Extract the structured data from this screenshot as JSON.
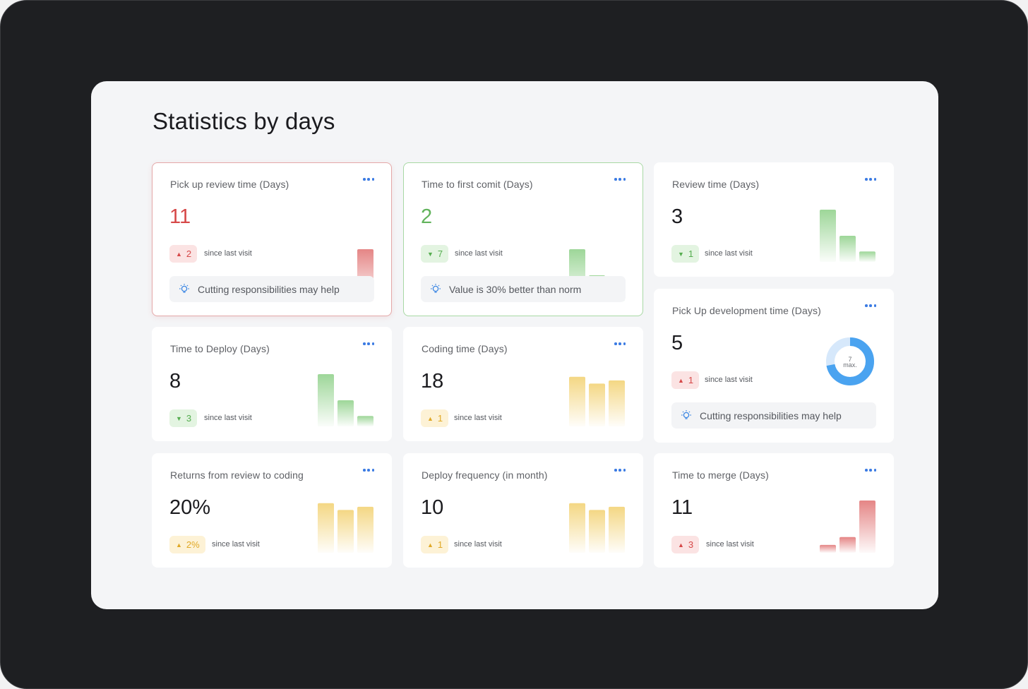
{
  "page": {
    "title": "Statistics by days"
  },
  "colors": {
    "red": "#e07070",
    "green": "#8ccf86",
    "yellow": "#f2d06e",
    "blue_accent": "#3b7be3",
    "donut": "#4aa3f0"
  },
  "icons": {
    "menu": "more-dots-icon",
    "tip": "lightbulb-icon",
    "up": "triangle-up-icon",
    "down": "triangle-down-icon"
  },
  "cards": [
    {
      "title": "Pick up review time (Days)",
      "value": "11",
      "status": "red",
      "delta": {
        "direction": "up",
        "amount": "2",
        "label": "since last visit"
      },
      "tip": "Cutting responsibilities may help",
      "bars": [
        0.12,
        0.28,
        1.0
      ]
    },
    {
      "title": "Time to first comit (Days)",
      "value": "2",
      "status": "green",
      "delta": {
        "direction": "down",
        "amount": "7",
        "label": "since last visit"
      },
      "tip": "Value is 30% better than norm",
      "bars": [
        1.0,
        0.5,
        0.2
      ]
    },
    {
      "title": "Review time (Days)",
      "value": "3",
      "status": "green",
      "delta": {
        "direction": "down",
        "amount": "1",
        "label": "since last visit"
      },
      "bars": [
        1.0,
        0.5,
        0.2
      ]
    },
    {
      "title": "Pick Up development time (Days)",
      "value": "5",
      "status": "red",
      "delta": {
        "direction": "up",
        "amount": "1",
        "label": "since last visit"
      },
      "tip": "Cutting responsibilities may help",
      "donut": {
        "center_value": "7",
        "center_label": "max.",
        "fraction": 0.72
      }
    },
    {
      "title": "Time to Deploy (Days)",
      "value": "8",
      "status": "green",
      "delta": {
        "direction": "down",
        "amount": "3",
        "label": "since last visit"
      },
      "bars": [
        1.0,
        0.5,
        0.2
      ]
    },
    {
      "title": "Coding time (Days)",
      "value": "18",
      "status": "yellow",
      "delta": {
        "direction": "up",
        "amount": "1",
        "label": "since last visit"
      },
      "bars": [
        0.95,
        0.82,
        0.88
      ]
    },
    {
      "title": "Returns from review to coding",
      "value": "20%",
      "status": "yellow",
      "delta": {
        "direction": "up",
        "amount": "2%",
        "label": "since last visit"
      },
      "bars": [
        0.95,
        0.82,
        0.88
      ]
    },
    {
      "title": "Deploy frequency (in month)",
      "value": "10",
      "status": "yellow",
      "delta": {
        "direction": "up",
        "amount": "1",
        "label": "since last visit"
      },
      "bars": [
        0.95,
        0.82,
        0.88
      ]
    },
    {
      "title": "Time to merge (Days)",
      "value": "11",
      "status": "red",
      "delta": {
        "direction": "up",
        "amount": "3",
        "label": "since last visit"
      },
      "bars": [
        0.15,
        0.3,
        1.0
      ]
    }
  ]
}
